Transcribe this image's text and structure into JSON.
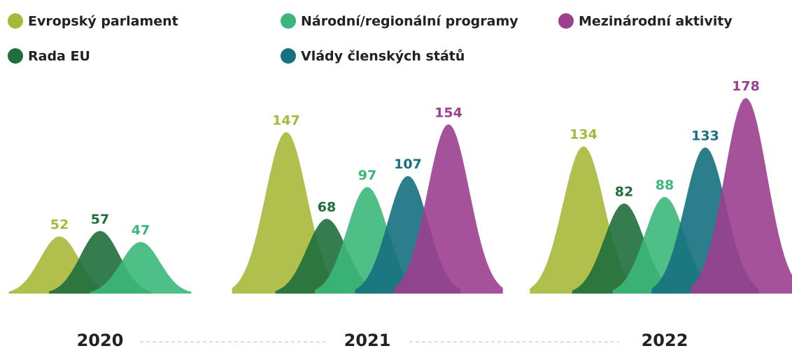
{
  "chart_data": {
    "type": "bar",
    "categories": [
      "2020",
      "2021",
      "2022"
    ],
    "series": [
      {
        "name": "Evropský parlament",
        "color": "#a8b83a",
        "values": [
          52,
          147,
          134
        ]
      },
      {
        "name": "Rada EU",
        "color": "#1f6e3c",
        "values": [
          57,
          68,
          82
        ]
      },
      {
        "name": "Národní/regionální programy",
        "color": "#3bb879",
        "values": [
          47,
          97,
          88
        ]
      },
      {
        "name": "Vlády členských států",
        "color": "#16707f",
        "values": [
          null,
          107,
          133
        ]
      },
      {
        "name": "Mezinárodní aktivity",
        "color": "#9c3f8f",
        "values": [
          null,
          154,
          178
        ]
      }
    ]
  }
}
